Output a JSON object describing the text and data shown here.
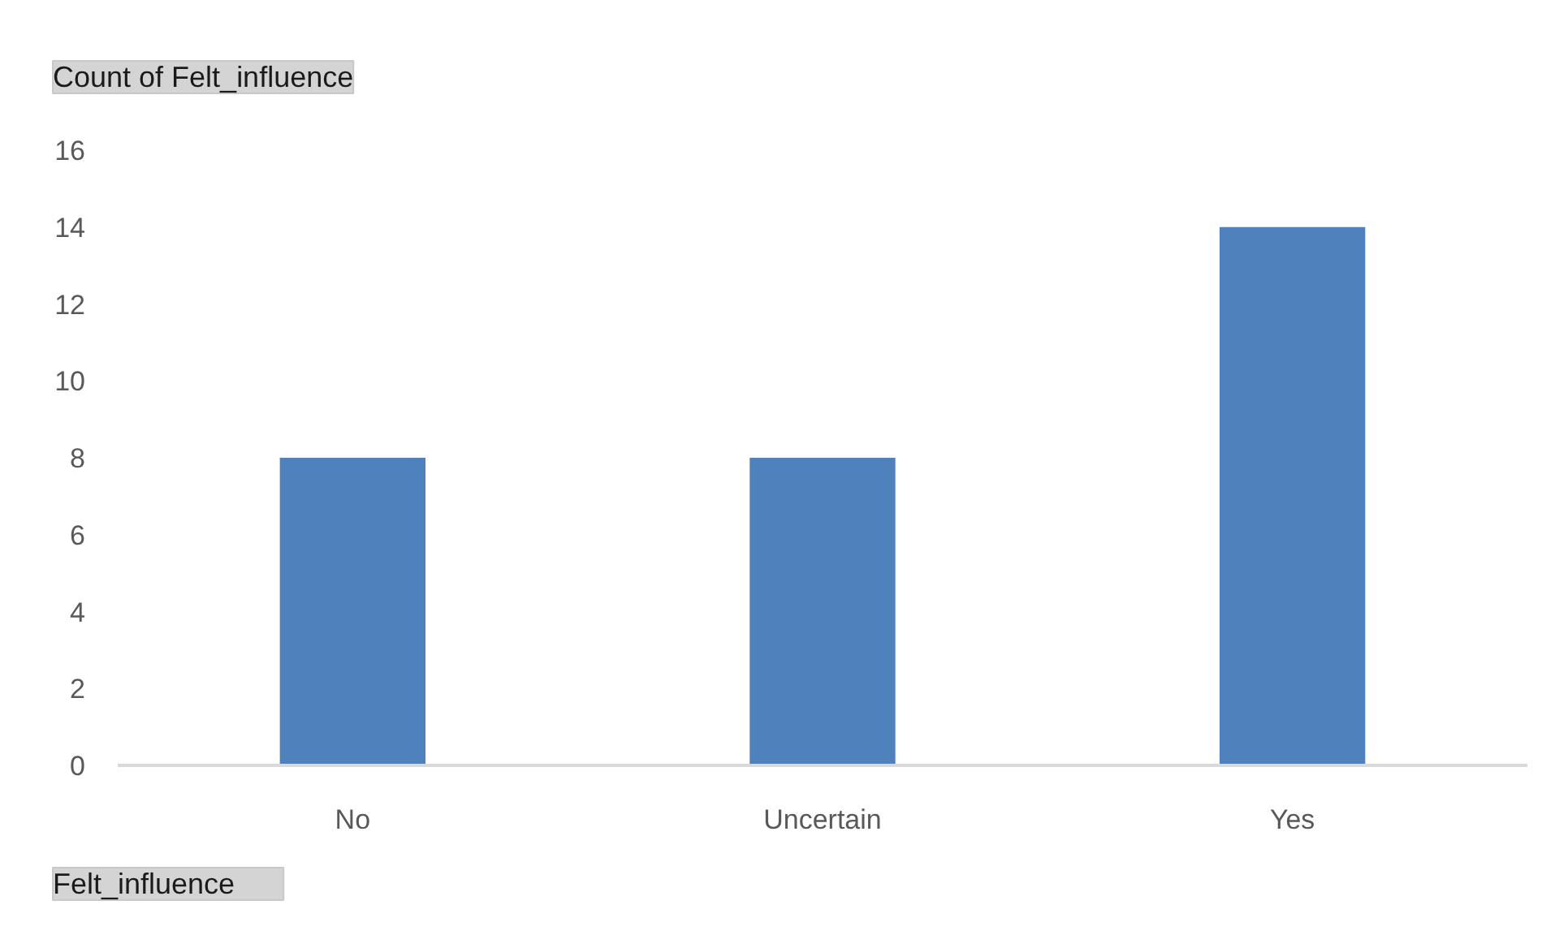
{
  "chart_data": {
    "type": "bar",
    "title": "Count of Felt_influence",
    "xlabel": "Felt_influence",
    "categories": [
      "No",
      "Uncertain",
      "Yes"
    ],
    "values": [
      8,
      8,
      14
    ],
    "color": "#4f81bd",
    "ylim": [
      0,
      16
    ],
    "yticks": [
      0,
      2,
      4,
      6,
      8,
      10,
      12,
      14,
      16
    ],
    "grid": false
  }
}
